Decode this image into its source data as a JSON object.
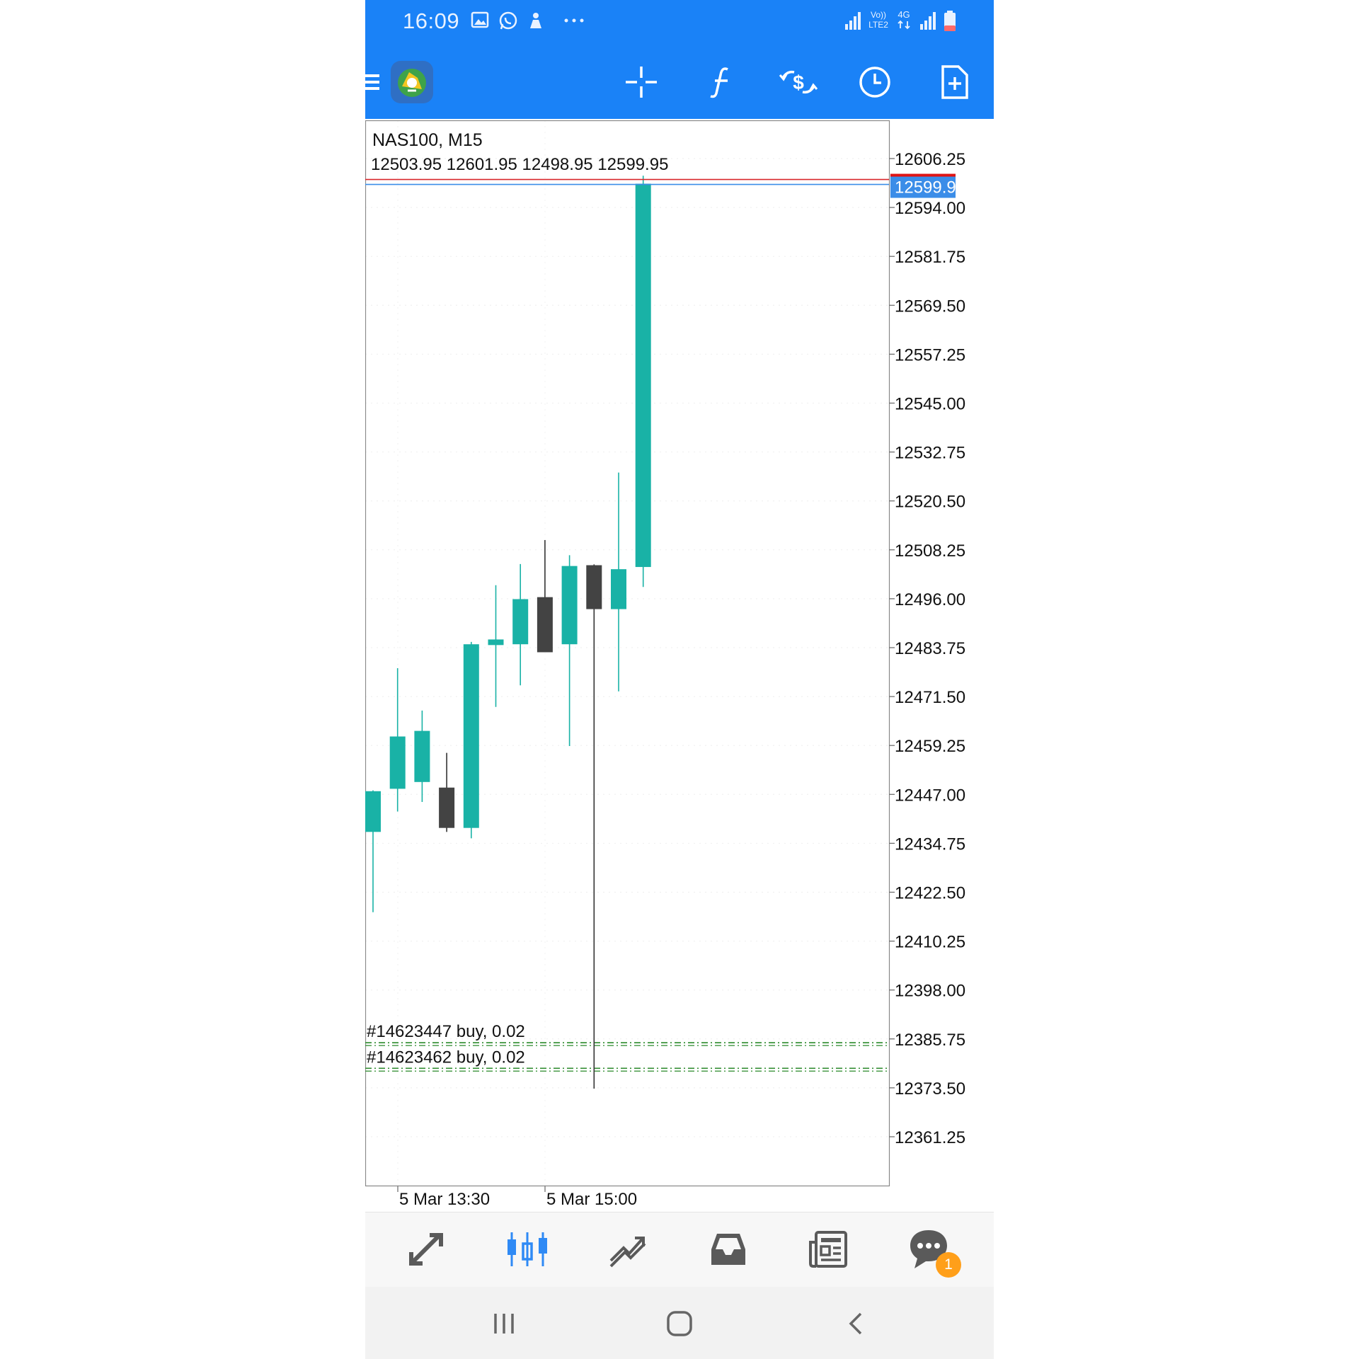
{
  "status_bar": {
    "time": "16:09",
    "left_icons": [
      "gallery-icon",
      "whatsapp-icon",
      "notification-icon",
      "more-dots-icon"
    ],
    "right_icons": [
      "signal-icon",
      "volte-lte2-icon",
      "data-4g-icon",
      "signal-icon",
      "battery-icon"
    ],
    "volte_label": "Vo)) LTE2",
    "net_label": "4G"
  },
  "toolbar": {
    "icons": [
      "menu-icon",
      "app-logo-icon",
      "crosshair-icon",
      "indicators-icon",
      "symbol-change-icon",
      "timeframe-icon",
      "new-order-icon"
    ]
  },
  "chart": {
    "symbol_label": "NAS100, M15",
    "ohlc_label": "12503.95 12601.95 12498.95 12599.95",
    "current_price_label": "12599.95",
    "price_ticks": [
      "12606.25",
      "12594.00",
      "12581.75",
      "12569.50",
      "12557.25",
      "12545.00",
      "12532.75",
      "12520.50",
      "12508.25",
      "12496.00",
      "12483.75",
      "12471.50",
      "12459.25",
      "12447.00",
      "12434.75",
      "12422.50",
      "12410.25",
      "12398.00",
      "12385.75",
      "12373.50",
      "12361.25"
    ],
    "time_labels": [
      "5 Mar 13:30",
      "5 Mar 15:00"
    ],
    "orders": [
      {
        "label": "#14623447 buy, 0.02",
        "price": 12384.8
      },
      {
        "label": "#14623462 buy, 0.02",
        "price": 12378.4
      }
    ],
    "colors": {
      "bull": "#19b2a6",
      "bear": "#434343",
      "bid_line": "#d9262b",
      "ask_line": "#3b8de8",
      "order_line": "#2b8a2b"
    }
  },
  "chart_data": {
    "type": "candlestick",
    "title": "NAS100, M15",
    "ylim": [
      12353,
      12614
    ],
    "y_ticks": [
      12606.25,
      12594.0,
      12581.75,
      12569.5,
      12557.25,
      12545.0,
      12532.75,
      12520.5,
      12508.25,
      12496.0,
      12483.75,
      12471.5,
      12459.25,
      12447.0,
      12434.75,
      12422.5,
      12410.25,
      12398.0,
      12385.75,
      12373.5,
      12361.25
    ],
    "x_labels": [
      "5 Mar 13:30",
      "5 Mar 15:00"
    ],
    "current_price": 12599.95,
    "last_ohlc": {
      "open": 12503.95,
      "high": 12601.95,
      "low": 12498.95,
      "close": 12599.95
    },
    "candles": [
      {
        "open": 12437.6,
        "high": 12448.0,
        "low": 12417.5,
        "close": 12447.8
      },
      {
        "open": 12448.4,
        "high": 12478.6,
        "low": 12442.7,
        "close": 12461.5
      },
      {
        "open": 12450.1,
        "high": 12468.0,
        "low": 12445.1,
        "close": 12462.9
      },
      {
        "open": 12448.7,
        "high": 12457.4,
        "low": 12437.6,
        "close": 12438.6
      },
      {
        "open": 12438.6,
        "high": 12485.2,
        "low": 12436.0,
        "close": 12484.6
      },
      {
        "open": 12484.4,
        "high": 12499.4,
        "low": 12468.9,
        "close": 12485.8
      },
      {
        "open": 12484.6,
        "high": 12504.7,
        "low": 12474.3,
        "close": 12495.9
      },
      {
        "open": 12496.4,
        "high": 12510.7,
        "low": 12483.1,
        "close": 12482.6
      },
      {
        "open": 12484.6,
        "high": 12506.9,
        "low": 12459.1,
        "close": 12504.2
      },
      {
        "open": 12504.4,
        "high": 12504.6,
        "low": 12373.3,
        "close": 12493.4
      },
      {
        "open": 12493.4,
        "high": 12527.6,
        "low": 12472.8,
        "close": 12503.4
      },
      {
        "open": 12503.95,
        "high": 12601.95,
        "low": 12498.95,
        "close": 12599.95
      }
    ]
  },
  "bottom_nav": {
    "items": [
      "quotes-icon",
      "chart-icon",
      "trade-icon",
      "history-icon",
      "news-icon",
      "chat-icon"
    ],
    "chat_badge": "1"
  },
  "system_nav": {
    "items": [
      "recent-apps-icon",
      "home-icon",
      "back-icon"
    ]
  }
}
